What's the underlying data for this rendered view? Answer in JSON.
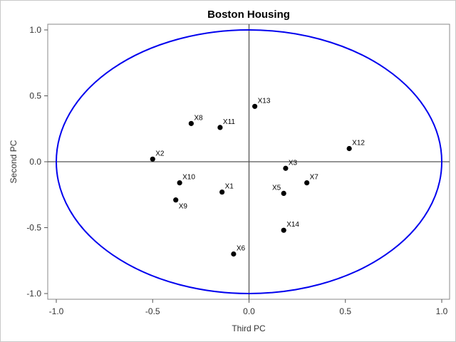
{
  "chart_data": {
    "type": "scatter",
    "title": "Boston Housing",
    "xlabel": "Third PC",
    "ylabel": "Second PC",
    "xlim": [
      -1.0,
      1.0
    ],
    "ylim": [
      -1.0,
      1.0
    ],
    "x_ticks": [
      -1.0,
      -0.5,
      0.0,
      0.5,
      1.0
    ],
    "y_ticks": [
      -1.0,
      -0.5,
      0.0,
      0.5,
      1.0
    ],
    "x_tick_labels": [
      "-1.0",
      "-0.5",
      "0.0",
      "0.5",
      "1.0"
    ],
    "y_tick_labels": [
      "-1.0",
      "-0.5",
      "0.0",
      "0.5",
      "1.0"
    ],
    "reference_lines": {
      "x": 0.0,
      "y": 0.0
    },
    "unit_circle": {
      "radius": 1.0,
      "color": "#0000ee"
    },
    "grid": false,
    "marker_color": "#000000",
    "points": [
      {
        "label": "X1",
        "x": -0.14,
        "y": -0.23,
        "label_pos": "ne"
      },
      {
        "label": "X2",
        "x": -0.5,
        "y": 0.02,
        "label_pos": "ne"
      },
      {
        "label": "X3",
        "x": 0.19,
        "y": -0.05,
        "label_pos": "ne"
      },
      {
        "label": "X5",
        "x": 0.18,
        "y": -0.24,
        "label_pos": "nw"
      },
      {
        "label": "X6",
        "x": -0.08,
        "y": -0.7,
        "label_pos": "ne"
      },
      {
        "label": "X7",
        "x": 0.3,
        "y": -0.16,
        "label_pos": "ne"
      },
      {
        "label": "X8",
        "x": -0.3,
        "y": 0.29,
        "label_pos": "ne"
      },
      {
        "label": "X9",
        "x": -0.38,
        "y": -0.29,
        "label_pos": "se"
      },
      {
        "label": "X10",
        "x": -0.36,
        "y": -0.16,
        "label_pos": "ne"
      },
      {
        "label": "X11",
        "x": -0.15,
        "y": 0.26,
        "label_pos": "ne"
      },
      {
        "label": "X12",
        "x": 0.52,
        "y": 0.1,
        "label_pos": "ne"
      },
      {
        "label": "X13",
        "x": 0.03,
        "y": 0.42,
        "label_pos": "ne"
      },
      {
        "label": "X14",
        "x": 0.18,
        "y": -0.52,
        "label_pos": "ne"
      }
    ]
  }
}
